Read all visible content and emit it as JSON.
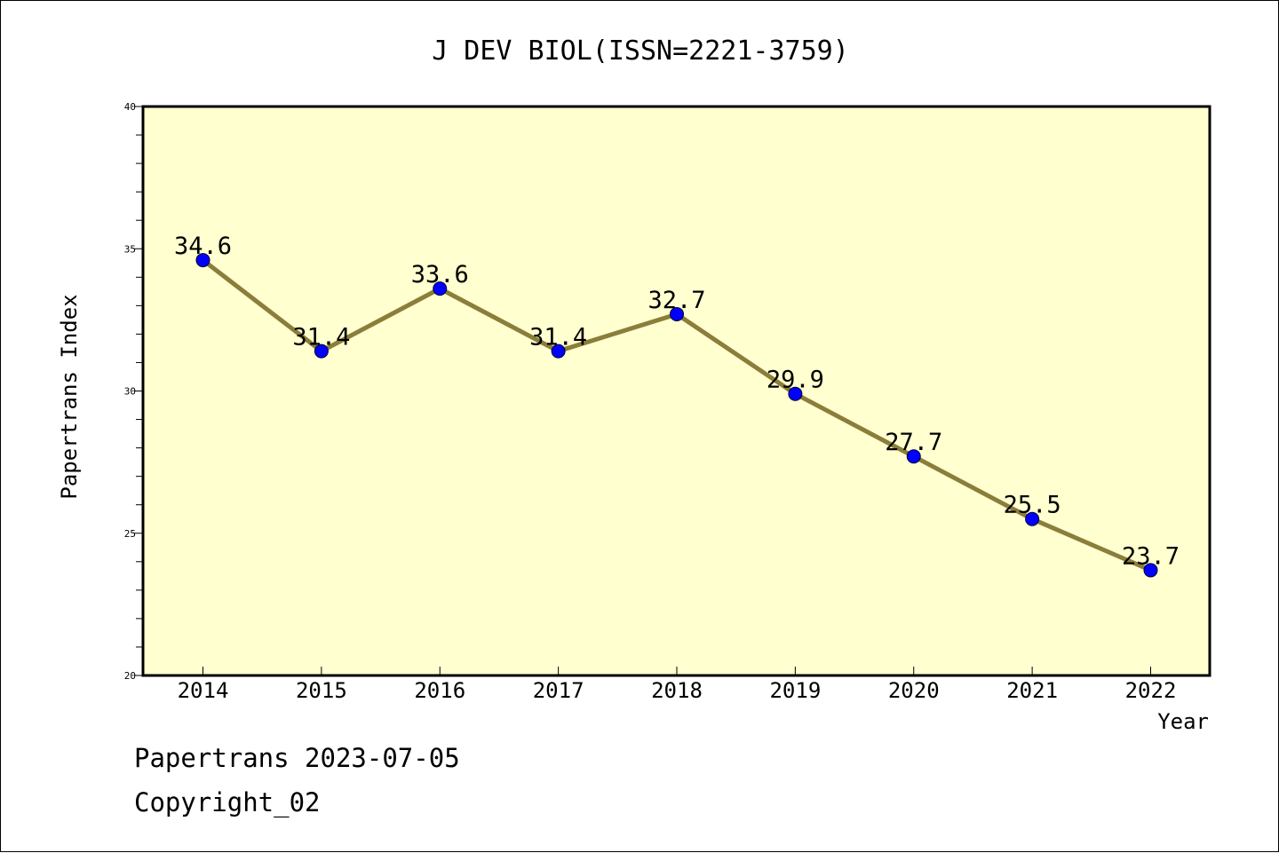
{
  "chart_data": {
    "type": "line",
    "title": "J DEV BIOL(ISSN=2221-3759)",
    "xlabel": "Year",
    "ylabel": "Papertrans Index",
    "categories": [
      "2014",
      "2015",
      "2016",
      "2017",
      "2018",
      "2019",
      "2020",
      "2021",
      "2022"
    ],
    "series": [
      {
        "values": [
          34.6,
          31.4,
          33.6,
          31.4,
          32.7,
          29.9,
          27.7,
          25.5,
          23.7
        ],
        "data_labels": [
          "34.6",
          "31.4",
          "33.6",
          "31.4",
          "32.7",
          "29.9",
          "27.7",
          "25.5",
          "23.7"
        ]
      }
    ],
    "ylim": [
      20,
      40
    ],
    "yticks": [
      "20",
      "25",
      "30",
      "35",
      "40"
    ],
    "grid": false,
    "plot_background": "#ffffd0",
    "line_color": "#8b7d3a",
    "marker_color": "#0000ff"
  },
  "footer": {
    "stamp": "Papertrans 2023-07-05",
    "copyright": "Copyright_02"
  }
}
